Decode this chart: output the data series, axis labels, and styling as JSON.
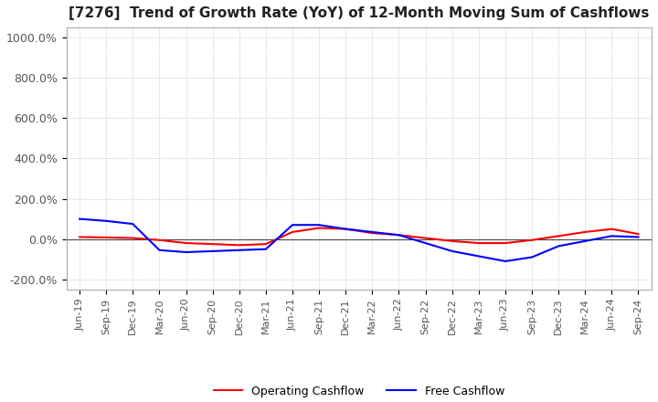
{
  "title": "[7276]  Trend of Growth Rate (YoY) of 12-Month Moving Sum of Cashflows",
  "title_fontsize": 11,
  "ylim": [
    -250,
    1050
  ],
  "yticks": [
    -200,
    0,
    200,
    400,
    600,
    800,
    1000
  ],
  "background_color": "#ffffff",
  "grid_color": "#aaaaaa",
  "x_labels": [
    "Jun-19",
    "Sep-19",
    "Dec-19",
    "Mar-20",
    "Jun-20",
    "Sep-20",
    "Dec-20",
    "Mar-21",
    "Jun-21",
    "Sep-21",
    "Dec-21",
    "Mar-22",
    "Jun-22",
    "Sep-22",
    "Dec-22",
    "Mar-23",
    "Jun-23",
    "Sep-23",
    "Dec-23",
    "Mar-24",
    "Jun-24",
    "Sep-24"
  ],
  "operating_cashflow": [
    10,
    8,
    5,
    -5,
    -20,
    -25,
    -30,
    -25,
    35,
    55,
    50,
    30,
    20,
    5,
    -10,
    -20,
    -20,
    -5,
    15,
    35,
    50,
    25
  ],
  "free_cashflow": [
    100,
    90,
    75,
    -55,
    -65,
    -60,
    -55,
    -50,
    70,
    70,
    50,
    35,
    20,
    -20,
    -60,
    -85,
    -110,
    -90,
    -35,
    -10,
    15,
    10
  ],
  "operating_color": "#ff0000",
  "free_color": "#0000ff",
  "line_width": 1.5
}
